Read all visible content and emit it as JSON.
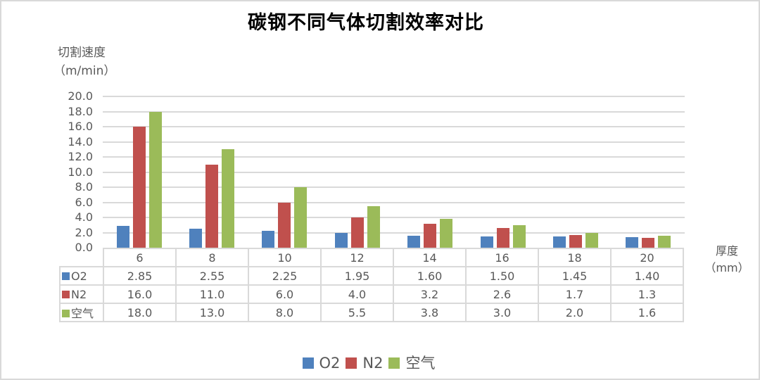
{
  "chart": {
    "title": "碳钢不同气体切割效率对比",
    "y_axis_label_line1": "切割速度",
    "y_axis_label_line2": "（m/min）",
    "x_axis_label_line1": "厚度",
    "x_axis_label_line2": "（mm）",
    "y_ticks": [
      "20.0",
      "18.0",
      "16.0",
      "14.0",
      "12.0",
      "10.0",
      "8.0",
      "6.0",
      "4.0",
      "2.0",
      "0.0"
    ],
    "categories": [
      "6",
      "8",
      "10",
      "12",
      "14",
      "16",
      "18",
      "20"
    ],
    "series": [
      {
        "name": "O2",
        "color": "#4f81bd",
        "display": [
          "2.85",
          "2.55",
          "2.25",
          "1.95",
          "1.60",
          "1.50",
          "1.45",
          "1.40"
        ]
      },
      {
        "name": "N2",
        "color": "#c0504d",
        "display": [
          "16.0",
          "11.0",
          "6.0",
          "4.0",
          "3.2",
          "2.6",
          "1.7",
          "1.3"
        ]
      },
      {
        "name": "空气",
        "color": "#9bbb59",
        "display": [
          "18.0",
          "13.0",
          "8.0",
          "5.5",
          "3.8",
          "3.0",
          "2.0",
          "1.6"
        ]
      }
    ],
    "legend": [
      {
        "name": "O2",
        "color": "#4f81bd"
      },
      {
        "name": "N2",
        "color": "#c0504d"
      },
      {
        "name": "空气",
        "color": "#9bbb59"
      }
    ]
  },
  "chart_data": {
    "type": "bar",
    "title": "碳钢不同气体切割效率对比",
    "xlabel": "厚度（mm）",
    "ylabel": "切割速度（m/min）",
    "categories": [
      "6",
      "8",
      "10",
      "12",
      "14",
      "16",
      "18",
      "20"
    ],
    "series": [
      {
        "name": "O2",
        "values": [
          2.85,
          2.55,
          2.25,
          1.95,
          1.6,
          1.5,
          1.45,
          1.4
        ]
      },
      {
        "name": "N2",
        "values": [
          16.0,
          11.0,
          6.0,
          4.0,
          3.2,
          2.6,
          1.7,
          1.3
        ]
      },
      {
        "name": "空气",
        "values": [
          18.0,
          13.0,
          8.0,
          5.5,
          3.8,
          3.0,
          2.0,
          1.6
        ]
      }
    ],
    "ylim": [
      0,
      20
    ],
    "y_tick_step": 2,
    "grid": true,
    "legend_position": "bottom",
    "data_table": true
  }
}
